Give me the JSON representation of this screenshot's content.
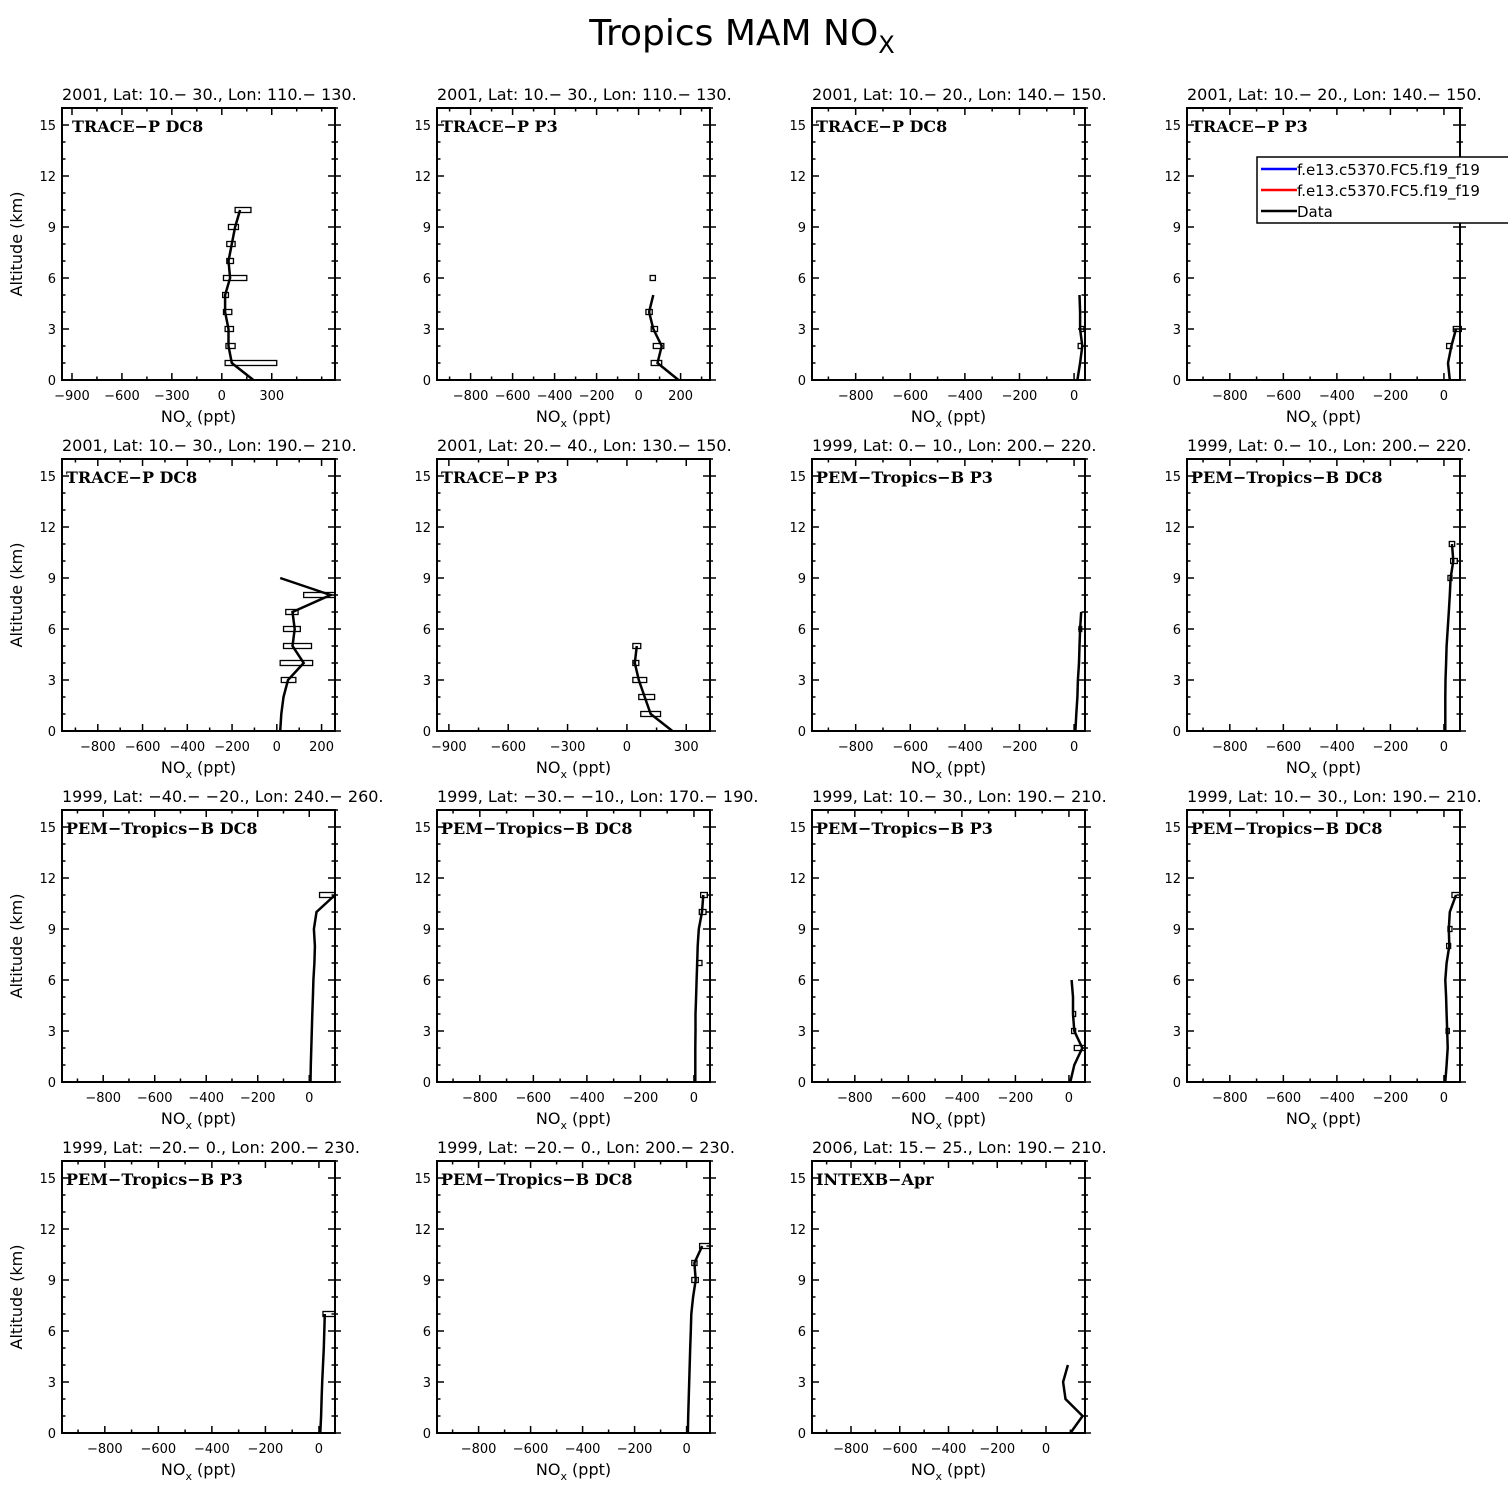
{
  "figure": {
    "title": "Tropics MAM NO",
    "title_sub": "X"
  },
  "chart_data": {
    "type": "line",
    "panel_grid": {
      "cols": 4,
      "rows": 4
    },
    "xlabel": "NO",
    "xlabel_sub": "x",
    "xlabel_unit": " (ppt)",
    "ylabel": "Altitude (km)",
    "ylim": [
      0,
      16
    ],
    "yticks": [
      0,
      3,
      6,
      9,
      12,
      15
    ],
    "legend": {
      "position": "top-right (panel 4)",
      "entries": [
        {
          "label": "f.e13.c5370.FC5.f19_f19",
          "color": "#0000ff"
        },
        {
          "label": "f.e13.c5370.FC5.f19_f19",
          "color": "#ff0000"
        },
        {
          "label": "Data",
          "color": "#000000"
        }
      ]
    },
    "panels": [
      {
        "title": "2001, Lat: 10.− 30., Lon: 110.− 130.",
        "label": "TRACE−P DC8",
        "xlim": [
          -960,
          680
        ],
        "xticks": [
          -900,
          -600,
          -300,
          0,
          300
        ],
        "xtick_labels": [
          "−900",
          "−600",
          "−300",
          "0",
          "300"
        ],
        "x": [
          190,
          60,
          40,
          40,
          20,
          20,
          50,
          40,
          60,
          80,
          110
        ],
        "y": [
          0,
          1,
          2,
          3,
          4,
          5,
          6,
          7,
          8,
          9,
          10
        ],
        "err": [
          [
            20,
            330
          ],
          [
            25,
            80
          ],
          [
            20,
            70
          ],
          [
            10,
            60
          ],
          [
            5,
            40
          ],
          [
            10,
            150
          ],
          [
            30,
            70
          ],
          [
            30,
            80
          ],
          [
            40,
            100
          ],
          [
            80,
            175
          ]
        ],
        "err_y": [
          1,
          2,
          3,
          4,
          5,
          6,
          7,
          8,
          9,
          10
        ]
      },
      {
        "title": "2001, Lat: 10.− 30., Lon: 110.− 130.",
        "label": "TRACE−P P3",
        "xlim": [
          -960,
          340
        ],
        "xticks": [
          -800,
          -600,
          -400,
          -200,
          0,
          200
        ],
        "xtick_labels": [
          "−800",
          "−600",
          "−400",
          "−200",
          "0",
          "200"
        ],
        "x": [
          190,
          90,
          110,
          70,
          50,
          70
        ],
        "y": [
          0,
          1,
          2,
          3,
          4,
          5
        ],
        "err": [
          [
            60,
            110
          ],
          [
            70,
            120
          ],
          [
            60,
            90
          ],
          [
            35,
            65
          ],
          [
            55,
            80
          ]
        ],
        "err_y": [
          1,
          2,
          3,
          4,
          6
        ]
      },
      {
        "title": "2001, Lat: 10.− 20., Lon: 140.− 150.",
        "label": "TRACE−P DC8",
        "xlim": [
          -960,
          40
        ],
        "xticks": [
          -800,
          -600,
          -400,
          -200,
          0
        ],
        "xtick_labels": [
          "−800",
          "−600",
          "−400",
          "−200",
          "0"
        ],
        "x": [
          12,
          22,
          30,
          22,
          22,
          20
        ],
        "y": [
          0,
          1,
          2,
          3,
          4,
          5
        ],
        "err": [
          [
            15,
            28
          ],
          [
            22,
            36
          ]
        ],
        "err_y": [
          2,
          3
        ]
      },
      {
        "title": "2001, Lat: 10.− 20., Lon: 140.− 150.",
        "label": "TRACE−P P3",
        "xlim": [
          -960,
          60
        ],
        "xticks": [
          -800,
          -600,
          -400,
          -200,
          0
        ],
        "xtick_labels": [
          "−800",
          "−600",
          "−400",
          "−200",
          "0"
        ],
        "x": [
          22,
          15,
          28,
          45
        ],
        "y": [
          0,
          1,
          2,
          3
        ],
        "err": [
          [
            10,
            30
          ],
          [
            35,
            65
          ]
        ],
        "err_y": [
          2,
          3
        ]
      },
      {
        "title": "2001, Lat: 10.− 30., Lon: 190.− 210.",
        "label": "TRACE−P DC8",
        "xlim": [
          -960,
          260
        ],
        "xticks": [
          -800,
          -600,
          -400,
          -200,
          0,
          200
        ],
        "xtick_labels": [
          "−800",
          "−600",
          "−400",
          "−200",
          "0",
          "200"
        ],
        "x": [
          15,
          20,
          30,
          50,
          120,
          70,
          80,
          70,
          240,
          15
        ],
        "y": [
          0,
          1,
          2,
          3,
          4,
          5,
          6,
          7,
          8,
          9
        ],
        "err": [
          [
            20,
            85
          ],
          [
            15,
            160
          ],
          [
            30,
            155
          ],
          [
            30,
            105
          ],
          [
            40,
            95
          ],
          [
            120,
            260
          ]
        ],
        "err_y": [
          3,
          4,
          5,
          6,
          7,
          8
        ]
      },
      {
        "title": "2001, Lat: 20.− 40., Lon: 130.− 150.",
        "label": "TRACE−P P3",
        "xlim": [
          -960,
          420
        ],
        "xticks": [
          -900,
          -600,
          -300,
          0,
          300
        ],
        "xtick_labels": [
          "−900",
          "−600",
          "−300",
          "0",
          "300"
        ],
        "x": [
          230,
          120,
          90,
          60,
          40,
          50
        ],
        "y": [
          0,
          1,
          2,
          3,
          4,
          5
        ],
        "err": [
          [
            70,
            170
          ],
          [
            60,
            140
          ],
          [
            30,
            100
          ],
          [
            30,
            60
          ],
          [
            30,
            70
          ]
        ],
        "err_y": [
          1,
          2,
          3,
          4,
          5
        ]
      },
      {
        "title": "1999, Lat: 0.− 10., Lon: 200.− 220.",
        "label": "PEM−Tropics−B P3",
        "xlim": [
          -960,
          40
        ],
        "xticks": [
          -800,
          -600,
          -400,
          -200,
          0
        ],
        "xtick_labels": [
          "−800",
          "−600",
          "−400",
          "−200",
          "0"
        ],
        "x": [
          5,
          8,
          12,
          14,
          18,
          20,
          22,
          26
        ],
        "y": [
          0,
          1,
          2,
          3,
          4,
          5,
          6,
          7
        ],
        "err": [
          [
            18,
            28
          ]
        ],
        "err_y": [
          6
        ]
      },
      {
        "title": "1999, Lat: 0.− 10., Lon: 200.− 220.",
        "label": "PEM−Tropics−B DC8",
        "xlim": [
          -960,
          60
        ],
        "xticks": [
          -800,
          -600,
          -400,
          -200,
          0
        ],
        "xtick_labels": [
          "−800",
          "−600",
          "−400",
          "−200",
          "0"
        ],
        "x": [
          5,
          5,
          5,
          6,
          8,
          10,
          14,
          18,
          22,
          25,
          35,
          30
        ],
        "y": [
          0,
          1,
          2,
          3,
          4,
          5,
          6,
          7,
          8,
          9,
          10,
          11
        ],
        "err": [
          [
            15,
            30
          ],
          [
            25,
            50
          ],
          [
            20,
            40
          ]
        ],
        "err_y": [
          9,
          10,
          11
        ]
      },
      {
        "title": "1999, Lat: −40.− −20., Lon: 240.− 260.",
        "label": "PEM−Tropics−B DC8",
        "xlim": [
          -960,
          100
        ],
        "xticks": [
          -800,
          -600,
          -400,
          -200,
          0
        ],
        "xtick_labels": [
          "−800",
          "−600",
          "−400",
          "−200",
          "0"
        ],
        "x": [
          5,
          6,
          8,
          10,
          12,
          14,
          16,
          20,
          22,
          18,
          28,
          100
        ],
        "y": [
          0,
          1,
          2,
          3,
          4,
          5,
          6,
          7,
          8,
          9,
          10,
          11
        ],
        "err": [
          [
            40,
            100
          ]
        ],
        "err_y": [
          11
        ]
      },
      {
        "title": "1999, Lat: −30.− −10., Lon: 170.− 190.",
        "label": "PEM−Tropics−B DC8",
        "xlim": [
          -960,
          60
        ],
        "xticks": [
          -800,
          -600,
          -400,
          -200,
          0
        ],
        "xtick_labels": [
          "−800",
          "−600",
          "−400",
          "−200",
          "0"
        ],
        "x": [
          5,
          5,
          5,
          6,
          6,
          8,
          10,
          12,
          14,
          18,
          30,
          35
        ],
        "y": [
          0,
          1,
          2,
          3,
          4,
          5,
          6,
          7,
          8,
          9,
          10,
          11
        ],
        "err": [
          [
            10,
            30
          ],
          [
            20,
            45
          ],
          [
            25,
            50
          ]
        ],
        "err_y": [
          7,
          10,
          11
        ]
      },
      {
        "title": "1999, Lat: 10.− 30., Lon: 190.− 210.",
        "label": "PEM−Tropics−B P3",
        "xlim": [
          -960,
          60
        ],
        "xticks": [
          -800,
          -600,
          -400,
          -200,
          0
        ],
        "xtick_labels": [
          "−800",
          "−600",
          "−400",
          "−200",
          "0"
        ],
        "x": [
          5,
          20,
          50,
          20,
          15,
          15,
          10
        ],
        "y": [
          0,
          1,
          2,
          3,
          4,
          5,
          6
        ],
        "err": [
          [
            20,
            60
          ],
          [
            10,
            25
          ],
          [
            15,
            25
          ]
        ],
        "err_y": [
          2,
          3,
          4
        ]
      },
      {
        "title": "1999, Lat: 10.− 30., Lon: 190.− 210.",
        "label": "PEM−Tropics−B DC8",
        "xlim": [
          -960,
          60
        ],
        "xticks": [
          -800,
          -600,
          -400,
          -200,
          0
        ],
        "xtick_labels": [
          "−800",
          "−600",
          "−400",
          "−200",
          "0"
        ],
        "x": [
          5,
          10,
          14,
          12,
          10,
          8,
          5,
          10,
          20,
          18,
          22,
          45
        ],
        "y": [
          0,
          1,
          2,
          3,
          4,
          5,
          6,
          7,
          8,
          9,
          10,
          11
        ],
        "err": [
          [
            8,
            20
          ],
          [
            10,
            25
          ],
          [
            15,
            30
          ],
          [
            30,
            60
          ]
        ],
        "err_y": [
          3,
          8,
          9,
          11
        ]
      },
      {
        "title": "1999, Lat: −20.− 0., Lon: 200.− 230.",
        "label": "PEM−Tropics−B P3",
        "xlim": [
          -960,
          60
        ],
        "xticks": [
          -800,
          -600,
          -400,
          -200,
          0
        ],
        "xtick_labels": [
          "−800",
          "−600",
          "−400",
          "−200",
          "0"
        ],
        "x": [
          5,
          8,
          10,
          12,
          15,
          18,
          20,
          22
        ],
        "y": [
          0,
          1,
          2,
          3,
          4,
          5,
          6,
          7
        ],
        "err": [
          [
            15,
            60
          ]
        ],
        "err_y": [
          7
        ]
      },
      {
        "title": "1999, Lat: −20.− 0., Lon: 200.− 230.",
        "label": "PEM−Tropics−B DC8",
        "xlim": [
          -960,
          90
        ],
        "xticks": [
          -800,
          -600,
          -400,
          -200,
          0
        ],
        "xtick_labels": [
          "−800",
          "−600",
          "−400",
          "−200",
          "0"
        ],
        "x": [
          5,
          6,
          8,
          10,
          12,
          14,
          16,
          18,
          25,
          35,
          30,
          60
        ],
        "y": [
          0,
          1,
          2,
          3,
          4,
          5,
          6,
          7,
          8,
          9,
          10,
          11
        ],
        "err": [
          [
            20,
            45
          ],
          [
            20,
            40
          ],
          [
            50,
            90
          ]
        ],
        "err_y": [
          9,
          10,
          11
        ]
      },
      {
        "title": "2006, Lat: 15.− 25., Lon: 190.− 210.",
        "label": "INTEXB−Apr",
        "xlim": [
          -960,
          160
        ],
        "xticks": [
          -800,
          -600,
          -400,
          -200,
          0
        ],
        "xtick_labels": [
          "−800",
          "−600",
          "−400",
          "−200",
          "0"
        ],
        "x": [
          100,
          150,
          80,
          70,
          90
        ],
        "y": [
          0,
          1,
          2,
          3,
          4
        ],
        "err": [],
        "err_y": []
      }
    ]
  }
}
